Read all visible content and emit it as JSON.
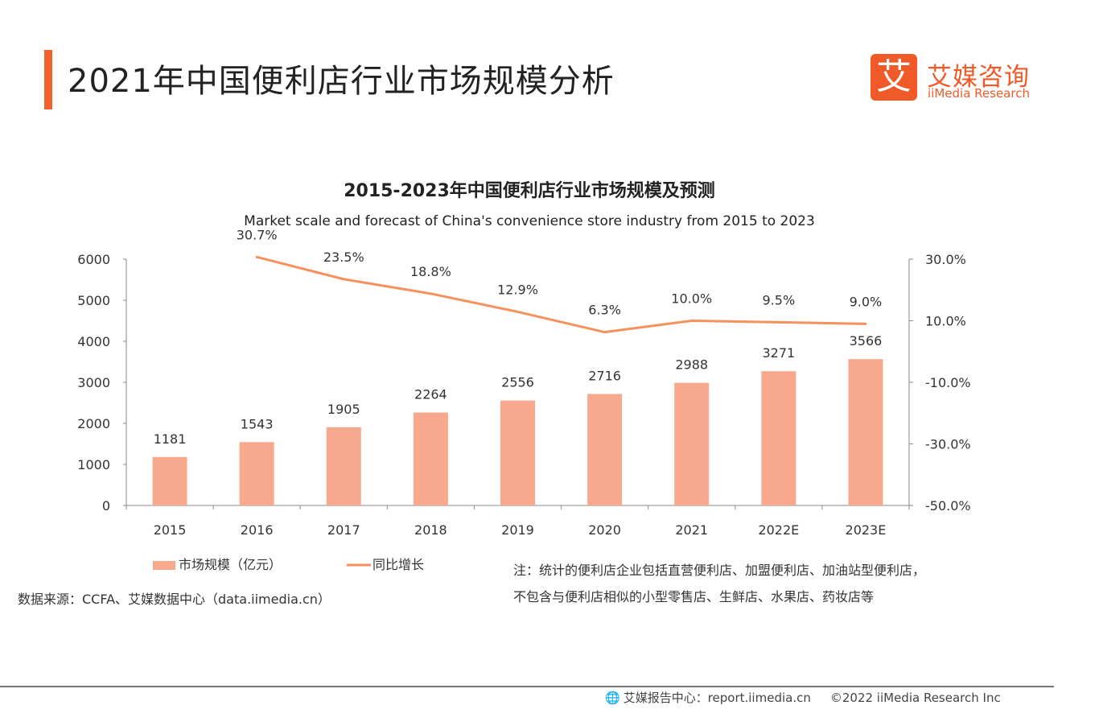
{
  "page": {
    "title": "2021年中国便利店行业市场规模分析"
  },
  "logo": {
    "mark": "艾",
    "name_cn": "艾媒咨询",
    "name_en": "iiMedia Research"
  },
  "chart_data": {
    "type": "bar",
    "title": "2015-2023年中国便利店行业市场规模及预测",
    "subtitle": "Market scale and forecast of China's convenience store industry from 2015 to 2023",
    "categories": [
      "2015",
      "2016",
      "2017",
      "2018",
      "2019",
      "2020",
      "2021",
      "2022E",
      "2023E"
    ],
    "series": [
      {
        "name": "市场规模（亿元）",
        "type": "bar",
        "axis": "left",
        "values": [
          1181,
          1543,
          1905,
          2264,
          2556,
          2716,
          2988,
          3271,
          3566
        ],
        "labels": [
          "1181",
          "1543",
          "1905",
          "2264",
          "2556",
          "2716",
          "2988",
          "3271",
          "3566"
        ]
      },
      {
        "name": "同比增长",
        "type": "line",
        "axis": "right",
        "values": [
          null,
          30.7,
          23.5,
          18.8,
          12.9,
          6.3,
          10.0,
          9.5,
          9.0
        ],
        "labels": [
          "",
          "30.7%",
          "23.5%",
          "18.8%",
          "12.9%",
          "6.3%",
          "10.0%",
          "9.5%",
          "9.0%"
        ]
      }
    ],
    "left_axis": {
      "ylim": [
        0,
        6000
      ],
      "ticks": [
        0,
        1000,
        2000,
        3000,
        4000,
        5000,
        6000
      ],
      "tick_labels": [
        "0",
        "1000",
        "2000",
        "3000",
        "4000",
        "5000",
        "6000"
      ]
    },
    "right_axis": {
      "ylim": [
        -50,
        30
      ],
      "ticks": [
        -50,
        -30,
        -10,
        10,
        30
      ],
      "tick_labels": [
        "-50.0%",
        "-30.0%",
        "-10.0%",
        "10.0%",
        "30.0%"
      ]
    },
    "legend_position": "bottom-left",
    "colors": {
      "bar": "#f8a88c",
      "line": "#f6915e",
      "axis": "#8a8a8a"
    }
  },
  "notes": {
    "source": "数据来源：CCFA、艾媒数据中心（data.iimedia.cn）",
    "note_line1": "注：统计的便利店企业包括直营便利店、加盟便利店、加油站型便利店，",
    "note_line2": "不包含与便利店相似的小型零售店、生鲜店、水果店、药妆店等"
  },
  "footer": {
    "report_center": "艾媒报告中心：report.iimedia.cn",
    "copyright": "©2022  iiMedia Research  Inc"
  }
}
